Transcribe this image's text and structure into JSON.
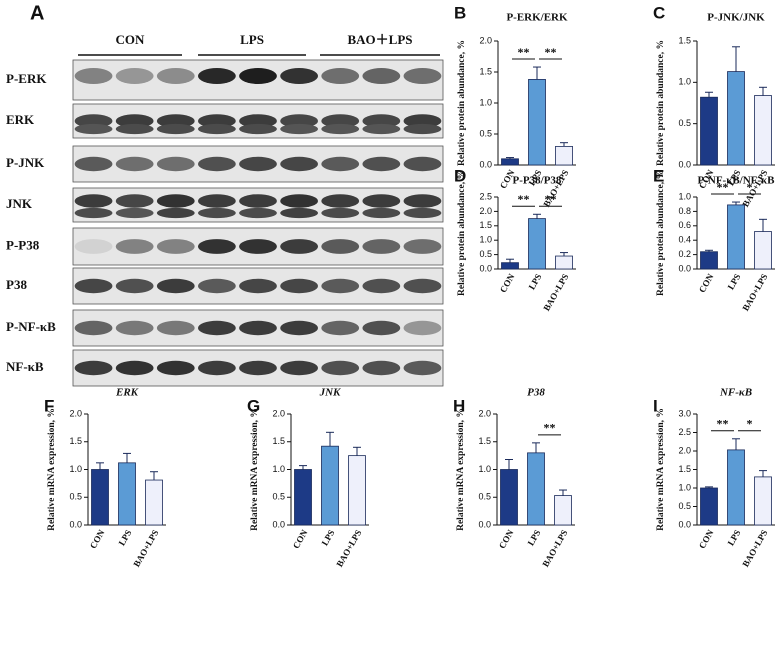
{
  "blot": {
    "panel": "A",
    "groups": [
      "CON",
      "LPS",
      "BAO＋LPS"
    ],
    "rows": [
      "P-ERK",
      "ERK",
      "P-JNK",
      "JNK",
      "P-P38",
      "P38",
      "P-NF-κB",
      "NF-κB"
    ]
  },
  "chart_data": [
    {
      "type": "bar",
      "panel": "B",
      "title": "P-ERK/ERK",
      "ylabel": "Relative protein abundance, %",
      "categories": [
        "CON",
        "LPS",
        "BAO+LPS"
      ],
      "values": [
        0.1,
        1.38,
        0.3
      ],
      "errors": [
        0.02,
        0.2,
        0.06
      ],
      "colors": [
        "#1d3a86",
        "#5b9bd5",
        "#eef0fb"
      ],
      "ylim": [
        0,
        2
      ],
      "yticks": [
        {
          "value": 0,
          "label": "0.0"
        },
        0.5,
        {
          "value": 1,
          "label": "1.0"
        },
        1.5,
        {
          "value": 2,
          "label": "2.0"
        }
      ],
      "annotations": [
        {
          "text": "**",
          "between": [
            "CON",
            "LPS"
          ]
        },
        {
          "text": "**",
          "between": [
            "LPS",
            "BAO+LPS"
          ]
        }
      ]
    },
    {
      "type": "bar",
      "panel": "C",
      "title": "P-JNK/JNK",
      "ylabel": "Relative protein abundance, %",
      "categories": [
        "CON",
        "LPS",
        "BAO+LPS"
      ],
      "values": [
        0.82,
        1.13,
        0.84
      ],
      "errors": [
        0.06,
        0.3,
        0.1
      ],
      "colors": [
        "#1d3a86",
        "#5b9bd5",
        "#eef0fb"
      ],
      "ylim": [
        0,
        1.5
      ],
      "yticks": [
        {
          "value": 0,
          "label": "0.0"
        },
        0.5,
        {
          "value": 1,
          "label": "1.0"
        },
        1.5
      ],
      "annotations": []
    },
    {
      "type": "bar",
      "panel": "D",
      "title": "P-P38/P38",
      "ylabel": "Relative protein abundance, %",
      "categories": [
        "CON",
        "LPS",
        "BAO+LPS"
      ],
      "values": [
        0.22,
        1.75,
        0.45
      ],
      "errors": [
        0.12,
        0.15,
        0.12
      ],
      "colors": [
        "#1d3a86",
        "#5b9bd5",
        "#eef0fb"
      ],
      "ylim": [
        0,
        2.5
      ],
      "yticks": [
        {
          "value": 0,
          "label": "0.0"
        },
        0.5,
        {
          "value": 1,
          "label": "1.0"
        },
        1.5,
        {
          "value": 2,
          "label": "2.0"
        },
        2.5
      ],
      "annotations": [
        {
          "text": "**",
          "between": [
            "CON",
            "LPS"
          ]
        },
        {
          "text": "**",
          "between": [
            "LPS",
            "BAO+LPS"
          ]
        }
      ]
    },
    {
      "type": "bar",
      "panel": "E",
      "title": "P-NF-κB/NF-κB",
      "ylabel": "Relative protein abundance, %",
      "categories": [
        "CON",
        "LPS",
        "BAO+LPS"
      ],
      "values": [
        0.24,
        0.89,
        0.52
      ],
      "errors": [
        0.02,
        0.04,
        0.17
      ],
      "colors": [
        "#1d3a86",
        "#5b9bd5",
        "#eef0fb"
      ],
      "ylim": [
        0,
        1
      ],
      "yticks": [
        {
          "value": 0,
          "label": "0.0"
        },
        0.2,
        0.4,
        0.6,
        0.8,
        {
          "value": 1,
          "label": "1.0"
        }
      ],
      "annotations": [
        {
          "text": "**",
          "between": [
            "CON",
            "LPS"
          ]
        },
        {
          "text": "*",
          "between": [
            "LPS",
            "BAO+LPS"
          ]
        }
      ]
    },
    {
      "type": "bar",
      "panel": "F",
      "title": "ERK",
      "ylabel": "Relative mRNA expression, %",
      "categories": [
        "CON",
        "LPS",
        "BAO+LPS"
      ],
      "values": [
        1.0,
        1.12,
        0.81
      ],
      "errors": [
        0.12,
        0.17,
        0.15
      ],
      "colors": [
        "#1d3a86",
        "#5b9bd5",
        "#eef0fb"
      ],
      "ylim": [
        0,
        2
      ],
      "yticks": [
        {
          "value": 0,
          "label": "0.0"
        },
        0.5,
        {
          "value": 1,
          "label": "1.0"
        },
        1.5,
        {
          "value": 2,
          "label": "2.0"
        }
      ],
      "annotations": []
    },
    {
      "type": "bar",
      "panel": "G",
      "title": "JNK",
      "ylabel": "Relative mRNA expression, %",
      "categories": [
        "CON",
        "LPS",
        "BAO+LPS"
      ],
      "values": [
        1.0,
        1.42,
        1.25
      ],
      "errors": [
        0.07,
        0.25,
        0.15
      ],
      "colors": [
        "#1d3a86",
        "#5b9bd5",
        "#eef0fb"
      ],
      "ylim": [
        0,
        2
      ],
      "yticks": [
        {
          "value": 0,
          "label": "0.0"
        },
        0.5,
        {
          "value": 1,
          "label": "1.0"
        },
        1.5,
        {
          "value": 2,
          "label": "2.0"
        }
      ],
      "annotations": []
    },
    {
      "type": "bar",
      "panel": "H",
      "title": "P38",
      "ylabel": "Relative mRNA expression, %",
      "categories": [
        "CON",
        "LPS",
        "BAO+LPS"
      ],
      "values": [
        1.0,
        1.3,
        0.53
      ],
      "errors": [
        0.18,
        0.18,
        0.1
      ],
      "colors": [
        "#1d3a86",
        "#5b9bd5",
        "#eef0fb"
      ],
      "ylim": [
        0,
        2
      ],
      "yticks": [
        {
          "value": 0,
          "label": "0.0"
        },
        0.5,
        {
          "value": 1,
          "label": "1.0"
        },
        1.5,
        {
          "value": 2,
          "label": "2.0"
        }
      ],
      "annotations": [
        {
          "text": "**",
          "between": [
            "LPS",
            "BAO+LPS"
          ]
        }
      ]
    },
    {
      "type": "bar",
      "panel": "I",
      "title": "NF-κB",
      "ylabel": "Relative mRNA expression, %",
      "categories": [
        "CON",
        "LPS",
        "BAO+LPS"
      ],
      "values": [
        1.0,
        2.03,
        1.3
      ],
      "errors": [
        0.03,
        0.3,
        0.17
      ],
      "colors": [
        "#1d3a86",
        "#5b9bd5",
        "#eef0fb"
      ],
      "ylim": [
        0,
        3
      ],
      "yticks": [
        {
          "value": 0,
          "label": "0.0"
        },
        0.5,
        {
          "value": 1,
          "label": "1.0"
        },
        1.5,
        {
          "value": 2,
          "label": "2.0"
        },
        2.5,
        {
          "value": 3,
          "label": "3.0"
        }
      ],
      "annotations": [
        {
          "text": "**",
          "between": [
            "CON",
            "LPS"
          ]
        },
        {
          "text": "*",
          "between": [
            "LPS",
            "BAO+LPS"
          ]
        }
      ]
    }
  ]
}
